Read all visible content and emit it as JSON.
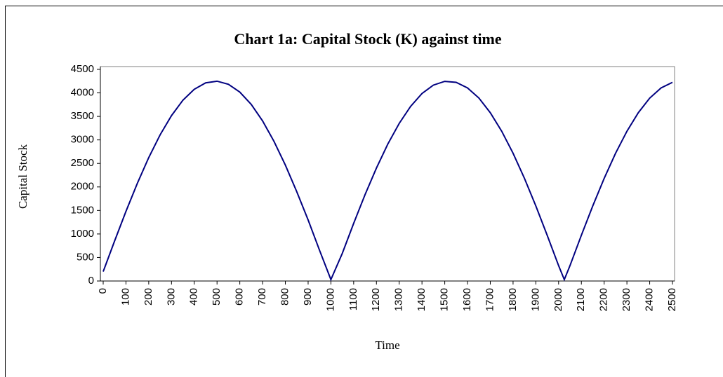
{
  "chart_data": {
    "type": "line",
    "title": "Chart 1a: Capital Stock (K) against time",
    "x_label": "Time",
    "y_label": "Capital Stock",
    "x": [
      0,
      50,
      100,
      150,
      200,
      250,
      300,
      350,
      400,
      450,
      500,
      550,
      600,
      650,
      700,
      750,
      800,
      850,
      900,
      950,
      1000,
      1050,
      1100,
      1150,
      1200,
      1250,
      1300,
      1350,
      1400,
      1450,
      1500,
      1550,
      1600,
      1650,
      1700,
      1750,
      1800,
      1850,
      1900,
      1950,
      2000,
      2025,
      2050,
      2100,
      2150,
      2200,
      2250,
      2300,
      2350,
      2400,
      2450,
      2500
    ],
    "series": [
      {
        "name": "K",
        "color": "#000080",
        "values": [
          200,
          849,
          1481,
          2077,
          2624,
          3108,
          3517,
          3844,
          4077,
          4213,
          4249,
          4183,
          4017,
          3756,
          3404,
          2970,
          2465,
          1900,
          1298,
          655,
          30,
          587,
          1226,
          1836,
          2402,
          2912,
          3351,
          3712,
          3987,
          4165,
          4245,
          4225,
          4105,
          3890,
          3578,
          3186,
          2717,
          2183,
          1596,
          971,
          327,
          30,
          327,
          973,
          1596,
          2181,
          2715,
          3184,
          3578,
          3889,
          4105,
          4225
        ]
      }
    ],
    "xlim": [
      0,
      2500
    ],
    "xticks": [
      0,
      100,
      200,
      300,
      400,
      500,
      600,
      700,
      800,
      900,
      1000,
      1100,
      1200,
      1300,
      1400,
      1500,
      1600,
      1700,
      1800,
      1900,
      2000,
      2100,
      2200,
      2300,
      2400,
      2500
    ],
    "ylim": [
      0,
      4500
    ],
    "yticks": [
      0,
      500,
      1000,
      1500,
      2000,
      2500,
      3000,
      3500,
      4000,
      4500
    ],
    "grid": false,
    "legend": false
  }
}
